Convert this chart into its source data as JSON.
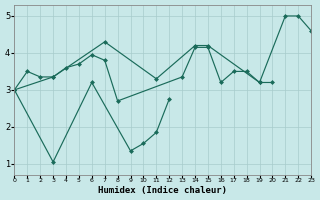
{
  "xlabel": "Humidex (Indice chaleur)",
  "xlim": [
    0,
    23
  ],
  "ylim": [
    0.7,
    5.3
  ],
  "yticks": [
    1,
    2,
    3,
    4,
    5
  ],
  "xticks": [
    0,
    1,
    2,
    3,
    4,
    5,
    6,
    7,
    8,
    9,
    10,
    11,
    12,
    13,
    14,
    15,
    16,
    17,
    18,
    19,
    20,
    21,
    22,
    23
  ],
  "bg_color": "#c8e8e8",
  "grid_color": "#a8cccc",
  "line_color": "#1a6b5a",
  "line1_x": [
    0,
    3,
    7,
    11,
    14,
    15,
    19,
    21,
    22,
    23
  ],
  "line1_y": [
    3.0,
    3.35,
    4.3,
    3.3,
    4.2,
    4.2,
    3.2,
    5.0,
    5.0,
    4.6
  ],
  "line2_x": [
    0,
    1,
    2,
    3,
    4,
    5,
    6,
    7,
    8,
    13,
    14,
    15,
    16,
    17,
    18,
    19,
    20
  ],
  "line2_y": [
    3.0,
    3.5,
    3.35,
    3.35,
    3.6,
    3.7,
    3.95,
    3.8,
    2.7,
    3.35,
    4.15,
    4.15,
    3.2,
    3.5,
    3.5,
    3.2,
    3.2
  ],
  "line3_x": [
    0,
    3,
    6,
    9,
    10,
    11,
    12
  ],
  "line3_y": [
    3.0,
    1.05,
    3.2,
    1.35,
    1.55,
    1.85,
    2.75
  ]
}
